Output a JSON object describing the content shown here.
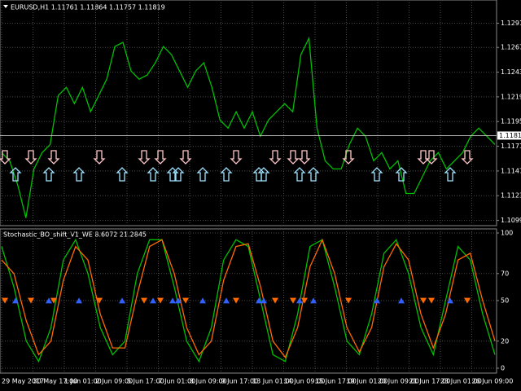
{
  "chart_data": [
    {
      "type": "line",
      "title": "EURUSD,H1  1.11761 1.11864 1.11757 1.11819",
      "series": [
        {
          "color": "#00c000",
          "values": [
            1.11653,
            1.11574,
            1.11336,
            1.11019,
            1.11495,
            1.11653,
            1.11732,
            1.12208,
            1.12288,
            1.12129,
            1.12288,
            1.1205,
            1.12208,
            1.12367,
            1.12684,
            1.12724,
            1.12446,
            1.12367,
            1.12407,
            1.12526,
            1.12684,
            1.12605,
            1.12446,
            1.12288,
            1.12446,
            1.12526,
            1.12288,
            1.1197,
            1.11891,
            1.1205,
            1.11891,
            1.1205,
            1.11812,
            1.1197,
            1.1205,
            1.12129,
            1.1205,
            1.12605,
            1.12764,
            1.11891,
            1.11574,
            1.11495,
            1.11495,
            1.11732,
            1.11891,
            1.11812,
            1.11574,
            1.11653,
            1.11495,
            1.11574,
            1.11257,
            1.11257,
            1.11415,
            1.11574,
            1.11653,
            1.11495,
            1.11574,
            1.11653,
            1.11812,
            1.11891,
            1.11812,
            1.11732
          ]
        }
      ],
      "last_price": 1.11819,
      "ylim": [
        1.1096,
        1.1312
      ],
      "yticks": [
        {
          "value": 1.10995,
          "label": "1.10995"
        },
        1.11235,
        1.11475,
        1.11715,
        1.11955,
        1.12195,
        1.12435,
        1.12675,
        {
          "value": 1.1291,
          "label": "1.12910"
        }
      ],
      "grid": true
    },
    {
      "type": "line",
      "title": "Stochastic_BO_shift_V1_WE 8.6072 21.2845",
      "series": [
        {
          "color": "#00c000",
          "values": [
            90,
            60,
            20,
            5,
            30,
            80,
            95,
            70,
            30,
            10,
            20,
            70,
            95,
            95,
            60,
            20,
            5,
            30,
            80,
            95,
            90,
            50,
            10,
            5,
            40,
            90,
            95,
            60,
            20,
            10,
            40,
            85,
            95,
            70,
            30,
            10,
            50,
            90,
            80,
            40,
            10
          ]
        },
        {
          "color": "#ff6a00",
          "values": [
            80,
            70,
            35,
            10,
            20,
            65,
            90,
            80,
            40,
            15,
            15,
            55,
            90,
            95,
            70,
            30,
            10,
            20,
            65,
            90,
            92,
            60,
            20,
            8,
            30,
            75,
            95,
            70,
            30,
            12,
            30,
            75,
            92,
            80,
            40,
            15,
            40,
            80,
            85,
            50,
            20
          ]
        }
      ],
      "ylim": [
        0,
        100
      ],
      "yticks": [
        0,
        20,
        50,
        70,
        100
      ],
      "grid": true
    }
  ],
  "time_axis": [
    "29 May 2017",
    "30 May 17:00",
    "1 Jun 01:00",
    "2 Jun 09:00",
    "5 Jun 17:00",
    "7 Jun 01:00",
    "8 Jun 09:00",
    "9 Jun 17:00",
    "13 Jun 01:00",
    "14 Jun 09:00",
    "15 Jun 17:00",
    "19 Jun 01:00",
    "20 Jun 09:00",
    "21 Jun 17:00",
    "23 Jun 01:00",
    "26 Jun 09:00"
  ]
}
